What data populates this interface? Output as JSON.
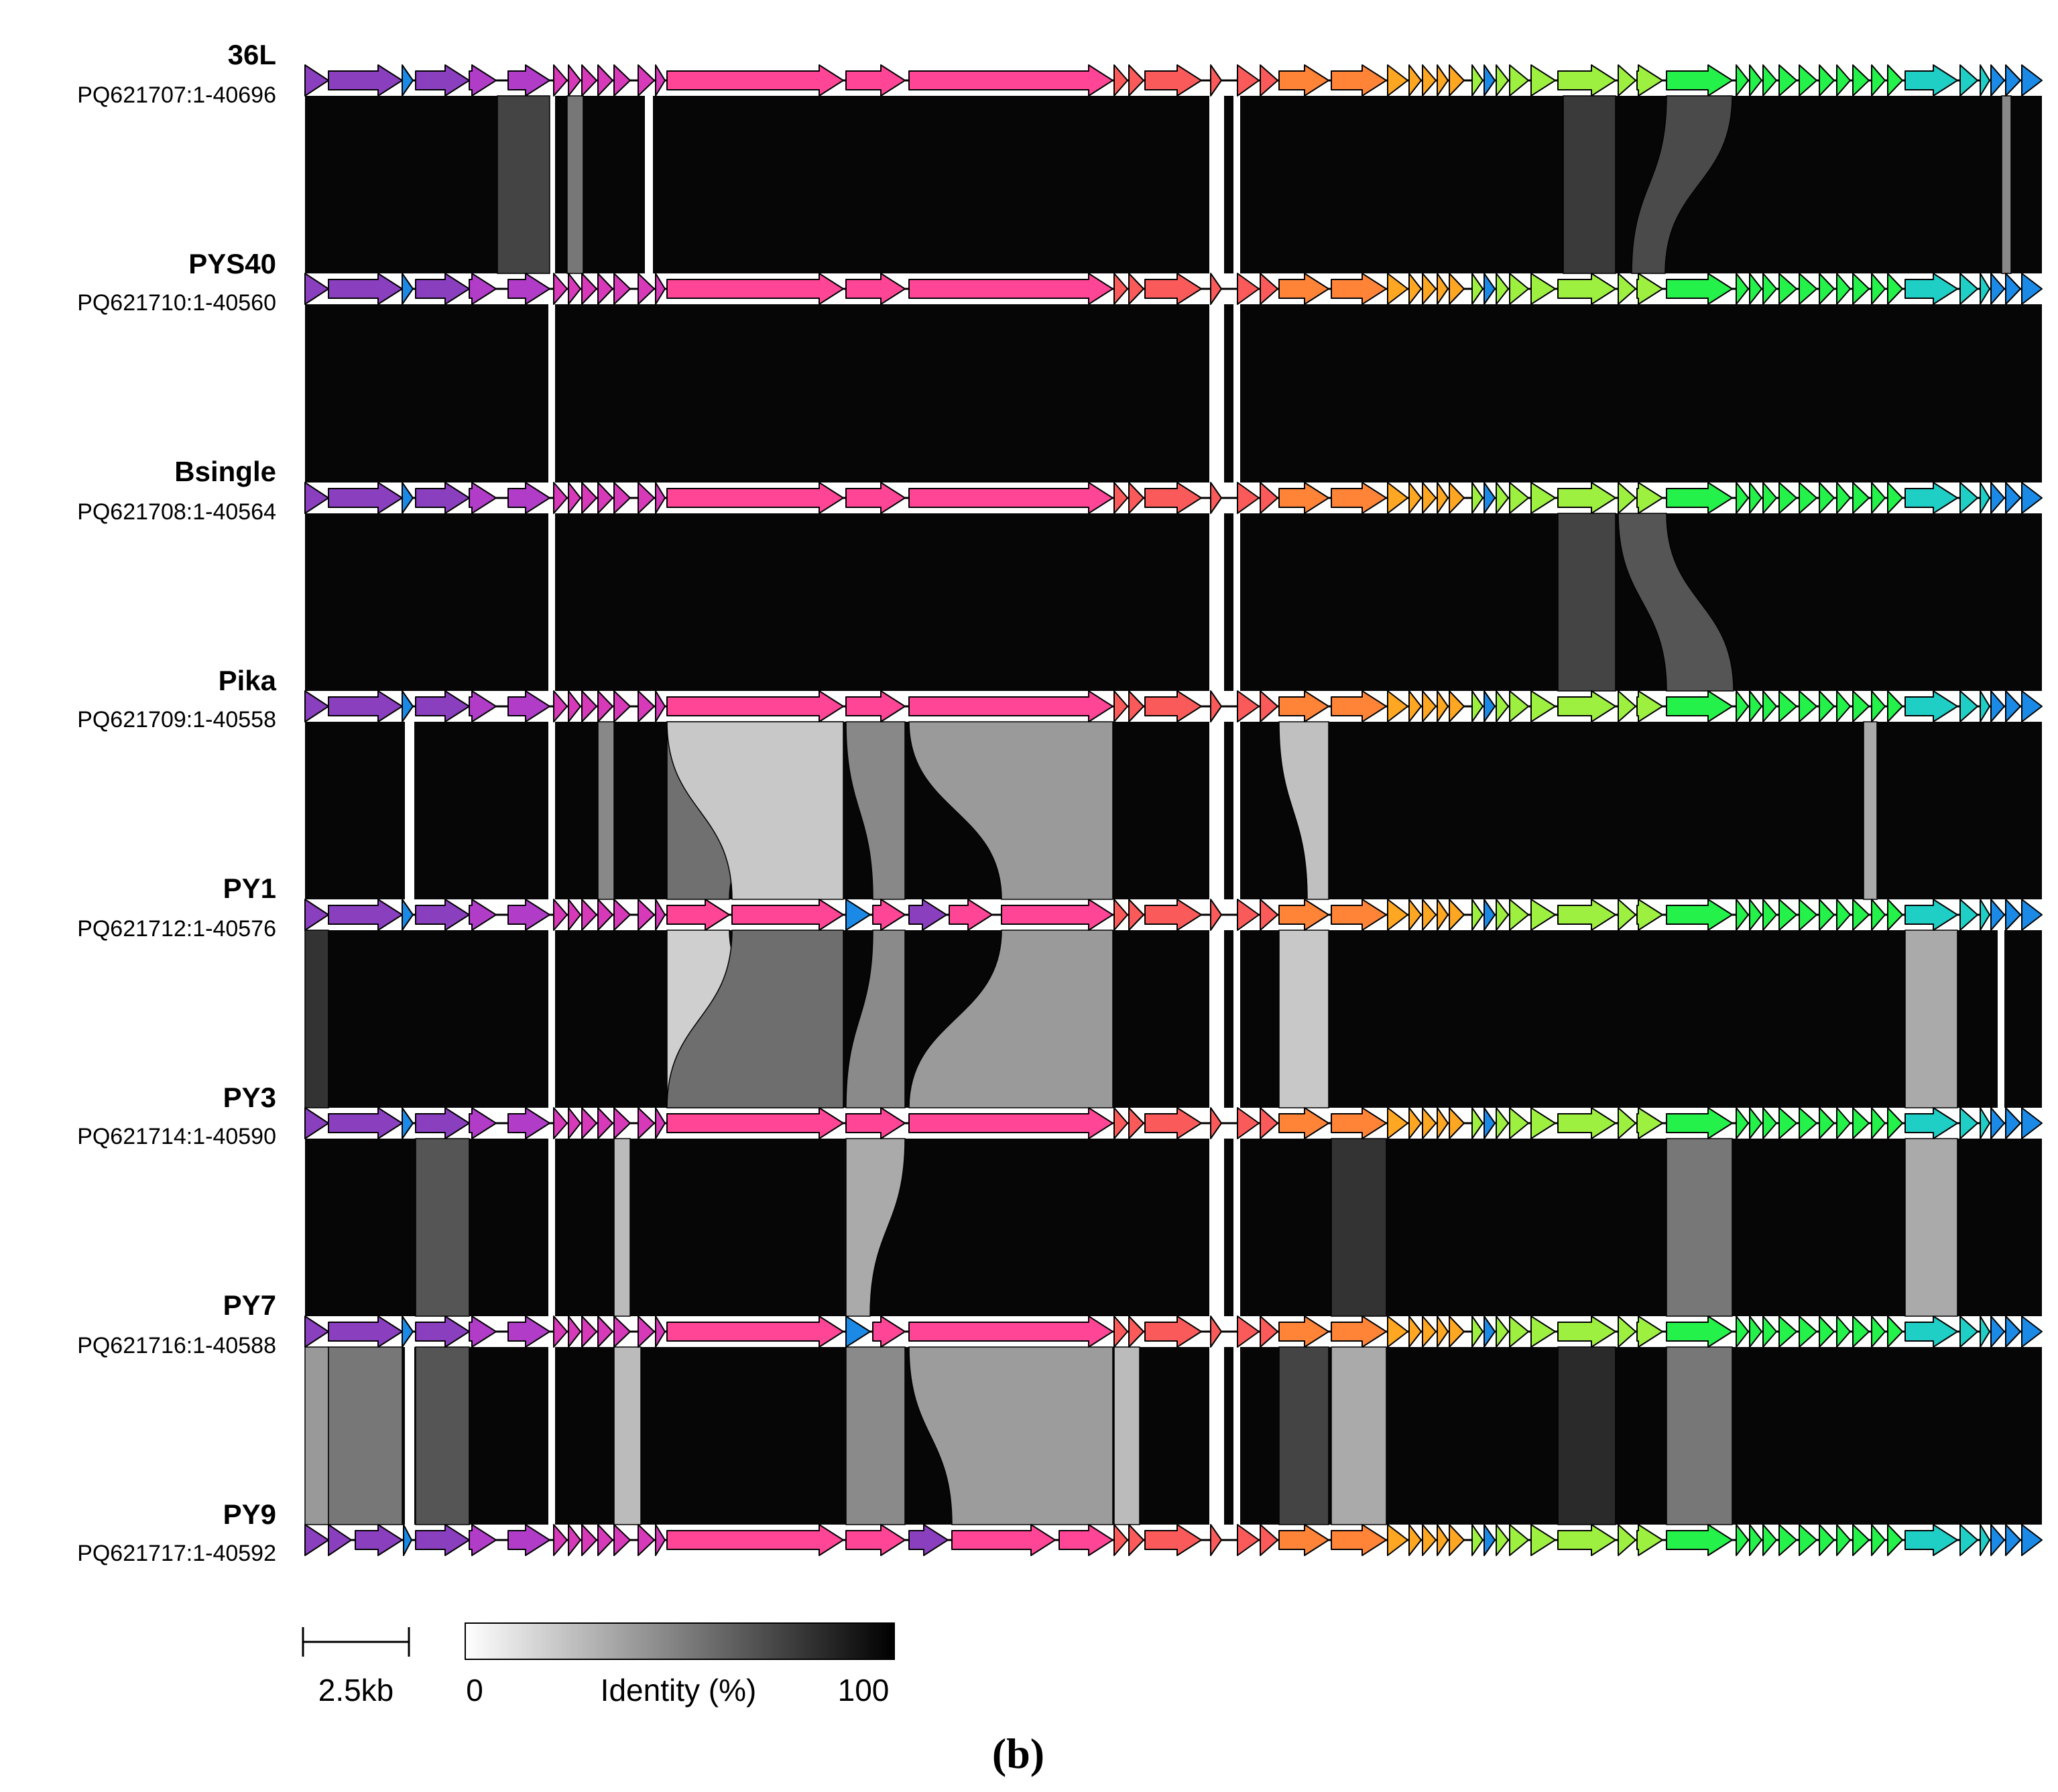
{
  "figure": {
    "panel_label": "(b)",
    "scale_label": "2.5kb",
    "legend": {
      "min_label": "0",
      "title": "Identity (%)",
      "max_label": "100",
      "color_low": "#ffffff",
      "color_high": "#000000"
    },
    "colors": {
      "purple": "#8a3fbf",
      "magenta": "#b03cc8",
      "pink_violet": "#d63ab8",
      "hot_pink": "#ff4596",
      "coral": "#fa5a5a",
      "orange": "#ff8438",
      "amber": "#ffa622",
      "lime": "#9ef040",
      "green": "#24f24a",
      "teal": "#1fcec4",
      "blue": "#1a8ae6"
    }
  },
  "genomes": [
    {
      "name": "36L",
      "accession": "PQ621707:1-40696"
    },
    {
      "name": "PYS40",
      "accession": "PQ621710:1-40560"
    },
    {
      "name": "Bsingle",
      "accession": "PQ621708:1-40564"
    },
    {
      "name": "Pika",
      "accession": "PQ621709:1-40558"
    },
    {
      "name": "PY1",
      "accession": "PQ621712:1-40576"
    },
    {
      "name": "PY3",
      "accession": "PQ621714:1-40590"
    },
    {
      "name": "PY7",
      "accession": "PQ621716:1-40588"
    },
    {
      "name": "PY9",
      "accession": "PQ621717:1-40592"
    }
  ]
}
